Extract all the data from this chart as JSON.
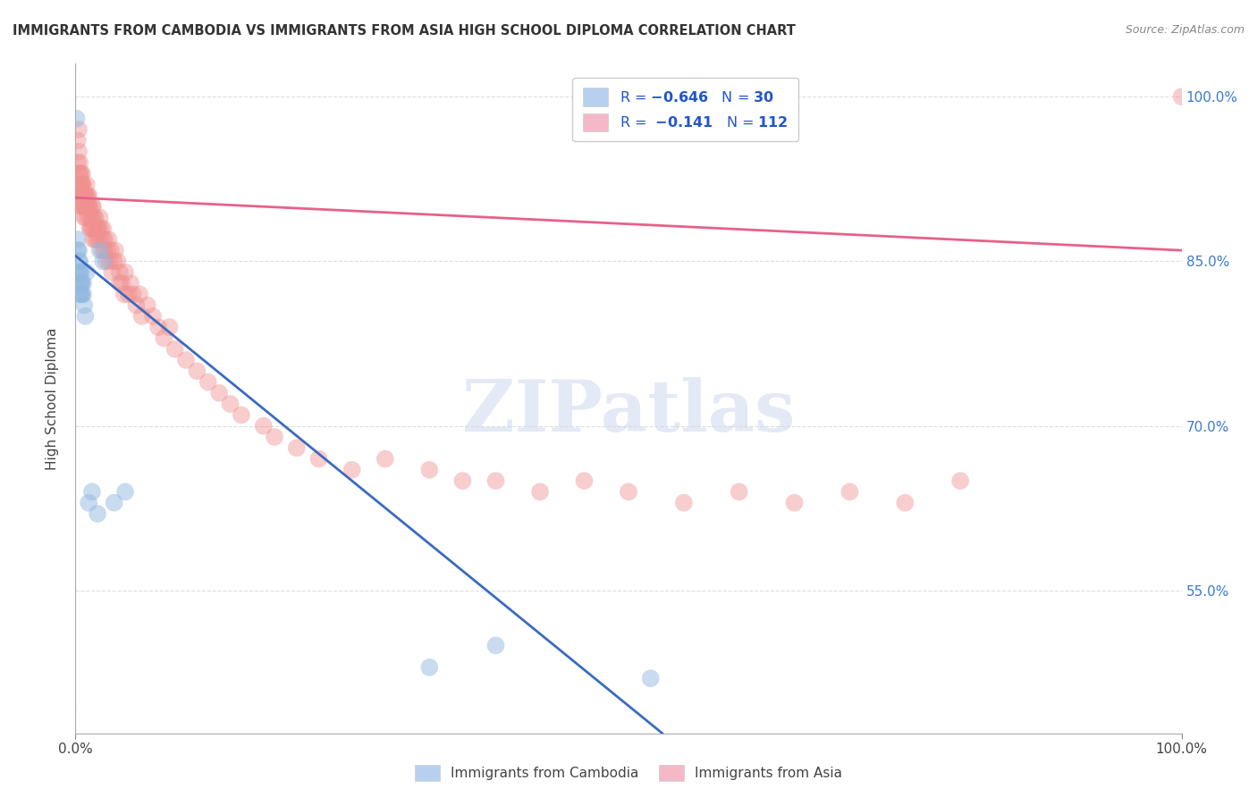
{
  "title": "IMMIGRANTS FROM CAMBODIA VS IMMIGRANTS FROM ASIA HIGH SCHOOL DIPLOMA CORRELATION CHART",
  "source": "Source: ZipAtlas.com",
  "ylabel": "High School Diploma",
  "xlim": [
    0.0,
    1.0
  ],
  "ylim": [
    0.42,
    1.03
  ],
  "ytick_labels": [
    "55.0%",
    "70.0%",
    "85.0%",
    "100.0%"
  ],
  "ytick_values": [
    0.55,
    0.7,
    0.85,
    1.0
  ],
  "xtick_labels": [
    "0.0%",
    "100.0%"
  ],
  "xtick_values": [
    0.0,
    1.0
  ],
  "r_cambodia": -0.646,
  "n_cambodia": 30,
  "r_asia": -0.141,
  "n_asia": 112,
  "background_color": "#ffffff",
  "watermark_text": "ZIPatlas",
  "grid_color": "#dddddd",
  "blue_scatter_color": "#92b8e0",
  "pink_scatter_color": "#f09090",
  "blue_line_color": "#3a6bbf",
  "pink_line_color": "#e8608a",
  "legend_blue_color": "#b8d0f0",
  "legend_pink_color": "#f5b8c8",
  "blue_line_intercept": 0.855,
  "blue_line_slope": -0.82,
  "pink_line_intercept": 0.908,
  "pink_line_slope": -0.048,
  "cambodia_x": [
    0.001,
    0.002,
    0.002,
    0.003,
    0.003,
    0.003,
    0.004,
    0.004,
    0.004,
    0.004,
    0.005,
    0.005,
    0.005,
    0.006,
    0.006,
    0.007,
    0.007,
    0.008,
    0.009,
    0.01,
    0.012,
    0.015,
    0.02,
    0.022,
    0.025,
    0.035,
    0.045,
    0.32,
    0.38,
    0.52
  ],
  "cambodia_y": [
    0.98,
    0.86,
    0.87,
    0.84,
    0.85,
    0.86,
    0.84,
    0.83,
    0.85,
    0.82,
    0.83,
    0.82,
    0.84,
    0.82,
    0.83,
    0.82,
    0.83,
    0.81,
    0.8,
    0.84,
    0.63,
    0.64,
    0.62,
    0.86,
    0.85,
    0.63,
    0.64,
    0.48,
    0.5,
    0.47
  ],
  "asia_x": [
    0.002,
    0.002,
    0.003,
    0.003,
    0.003,
    0.004,
    0.004,
    0.004,
    0.005,
    0.005,
    0.005,
    0.005,
    0.006,
    0.006,
    0.006,
    0.006,
    0.006,
    0.007,
    0.007,
    0.007,
    0.008,
    0.008,
    0.008,
    0.008,
    0.009,
    0.009,
    0.009,
    0.01,
    0.01,
    0.01,
    0.01,
    0.011,
    0.011,
    0.012,
    0.012,
    0.012,
    0.013,
    0.013,
    0.014,
    0.014,
    0.015,
    0.015,
    0.015,
    0.016,
    0.016,
    0.017,
    0.017,
    0.018,
    0.018,
    0.019,
    0.02,
    0.02,
    0.021,
    0.022,
    0.022,
    0.023,
    0.024,
    0.025,
    0.025,
    0.026,
    0.027,
    0.028,
    0.029,
    0.03,
    0.031,
    0.032,
    0.033,
    0.035,
    0.036,
    0.038,
    0.04,
    0.04,
    0.042,
    0.044,
    0.045,
    0.048,
    0.05,
    0.052,
    0.055,
    0.058,
    0.06,
    0.065,
    0.07,
    0.075,
    0.08,
    0.085,
    0.09,
    0.1,
    0.11,
    0.12,
    0.13,
    0.14,
    0.15,
    0.17,
    0.18,
    0.2,
    0.22,
    0.25,
    0.28,
    0.32,
    0.35,
    0.38,
    0.42,
    0.46,
    0.5,
    0.55,
    0.6,
    0.65,
    0.7,
    0.75,
    0.8,
    1.0
  ],
  "asia_y": [
    0.96,
    0.94,
    0.95,
    0.93,
    0.97,
    0.93,
    0.92,
    0.94,
    0.92,
    0.93,
    0.91,
    0.9,
    0.92,
    0.93,
    0.91,
    0.9,
    0.92,
    0.91,
    0.9,
    0.92,
    0.91,
    0.9,
    0.89,
    0.91,
    0.9,
    0.89,
    0.91,
    0.9,
    0.91,
    0.92,
    0.9,
    0.91,
    0.9,
    0.89,
    0.9,
    0.91,
    0.88,
    0.9,
    0.89,
    0.88,
    0.9,
    0.89,
    0.88,
    0.9,
    0.87,
    0.89,
    0.88,
    0.89,
    0.87,
    0.88,
    0.88,
    0.87,
    0.88,
    0.89,
    0.87,
    0.88,
    0.86,
    0.87,
    0.88,
    0.86,
    0.87,
    0.85,
    0.86,
    0.87,
    0.85,
    0.86,
    0.84,
    0.85,
    0.86,
    0.85,
    0.83,
    0.84,
    0.83,
    0.82,
    0.84,
    0.82,
    0.83,
    0.82,
    0.81,
    0.82,
    0.8,
    0.81,
    0.8,
    0.79,
    0.78,
    0.79,
    0.77,
    0.76,
    0.75,
    0.74,
    0.73,
    0.72,
    0.71,
    0.7,
    0.69,
    0.68,
    0.67,
    0.66,
    0.67,
    0.66,
    0.65,
    0.65,
    0.64,
    0.65,
    0.64,
    0.63,
    0.64,
    0.63,
    0.64,
    0.63,
    0.65,
    1.0
  ]
}
